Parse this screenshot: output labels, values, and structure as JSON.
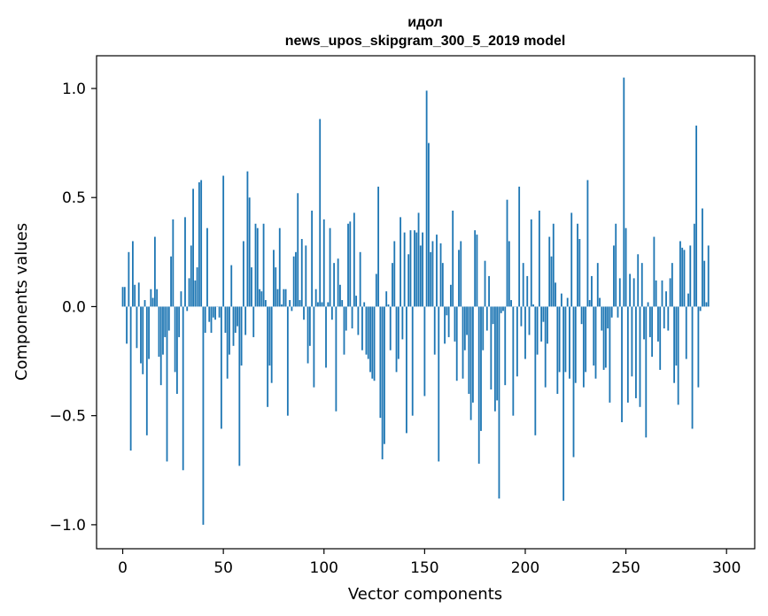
{
  "chart_data": {
    "type": "bar",
    "title": "идол",
    "subtitle": "news_upos_skipgram_300_5_2019 model",
    "xlabel": "Vector components",
    "ylabel": "Components values",
    "xlim": [
      -13,
      314
    ],
    "ylim": [
      -1.11,
      1.15
    ],
    "xticks": [
      0,
      50,
      100,
      150,
      200,
      250,
      300
    ],
    "xtick_labels": [
      "0",
      "50",
      "100",
      "150",
      "200",
      "250",
      "300"
    ],
    "yticks": [
      -1.0,
      -0.5,
      0.0,
      0.5,
      1.0
    ],
    "ytick_labels": [
      "−1.0",
      "−0.5",
      "0.0",
      "0.5",
      "1.0"
    ],
    "grid": false,
    "bar_color": "#1f77b4",
    "series": [
      {
        "values": [
          0.09,
          0.09,
          -0.17,
          0.25,
          -0.66,
          0.3,
          0.1,
          -0.19,
          0.11,
          -0.26,
          -0.31,
          0.03,
          -0.59,
          -0.24,
          0.08,
          0.04,
          0.32,
          0.08,
          -0.23,
          -0.36,
          -0.22,
          -0.14,
          -0.71,
          -0.11,
          0.23,
          0.4,
          -0.3,
          -0.4,
          -0.14,
          0.07,
          -0.75,
          0.41,
          -0.02,
          0.13,
          0.28,
          0.54,
          0.12,
          0.18,
          0.57,
          0.58,
          -1.0,
          -0.12,
          0.36,
          -0.07,
          -0.12,
          -0.05,
          -0.06,
          0.0,
          -0.05,
          -0.56,
          0.6,
          -0.12,
          -0.33,
          -0.22,
          0.19,
          -0.18,
          -0.12,
          -0.09,
          -0.73,
          -0.27,
          0.3,
          -0.13,
          0.62,
          0.5,
          0.18,
          -0.14,
          0.38,
          0.36,
          0.08,
          0.07,
          0.38,
          0.03,
          -0.46,
          -0.27,
          -0.35,
          0.26,
          0.18,
          0.08,
          0.36,
          0.01,
          0.08,
          0.08,
          -0.5,
          0.03,
          -0.02,
          0.23,
          0.25,
          0.52,
          0.03,
          0.31,
          -0.06,
          0.28,
          -0.26,
          -0.18,
          0.44,
          -0.37,
          0.08,
          0.02,
          0.86,
          0.02,
          0.4,
          -0.28,
          0.02,
          0.36,
          -0.06,
          0.2,
          -0.48,
          0.22,
          0.1,
          0.03,
          -0.22,
          -0.11,
          0.38,
          0.39,
          -0.1,
          0.43,
          0.05,
          -0.13,
          0.25,
          -0.2,
          0.02,
          -0.22,
          -0.24,
          -0.3,
          -0.33,
          -0.34,
          0.15,
          0.55,
          -0.51,
          -0.7,
          -0.63,
          0.07,
          0.01,
          -0.2,
          0.2,
          0.3,
          -0.3,
          -0.24,
          0.41,
          -0.15,
          0.34,
          -0.58,
          0.24,
          0.35,
          -0.5,
          0.35,
          0.34,
          0.43,
          0.28,
          0.34,
          -0.41,
          0.99,
          0.75,
          0.25,
          0.3,
          -0.22,
          0.33,
          -0.71,
          0.29,
          0.2,
          -0.17,
          -0.04,
          -0.14,
          0.1,
          0.44,
          -0.16,
          -0.34,
          0.26,
          0.3,
          -0.33,
          -0.2,
          -0.13,
          -0.4,
          -0.52,
          -0.44,
          0.35,
          0.33,
          -0.72,
          -0.57,
          -0.2,
          0.21,
          -0.11,
          0.14,
          -0.38,
          -0.08,
          -0.48,
          -0.43,
          -0.88,
          -0.03,
          -0.02,
          -0.36,
          0.49,
          0.3,
          0.03,
          -0.5,
          0.0,
          -0.32,
          0.55,
          -0.09,
          0.2,
          -0.24,
          0.14,
          -0.13,
          0.4,
          0.01,
          -0.59,
          -0.22,
          0.44,
          -0.16,
          -0.07,
          -0.37,
          -0.17,
          0.32,
          0.23,
          0.38,
          0.11,
          -0.4,
          -0.3,
          0.06,
          -0.89,
          -0.3,
          0.04,
          -0.33,
          0.43,
          -0.69,
          -0.35,
          0.38,
          0.31,
          -0.08,
          -0.37,
          -0.3,
          0.58,
          0.03,
          0.14,
          -0.27,
          -0.33,
          0.2,
          0.04,
          -0.11,
          -0.29,
          -0.28,
          -0.1,
          -0.44,
          -0.05,
          0.28,
          0.38,
          -0.05,
          0.13,
          -0.53,
          1.05,
          0.36,
          -0.44,
          0.15,
          -0.32,
          0.13,
          -0.42,
          0.24,
          -0.46,
          0.2,
          -0.15,
          -0.6,
          0.02,
          -0.14,
          -0.23,
          0.32,
          0.12,
          -0.16,
          -0.29,
          0.12,
          -0.1,
          0.07,
          -0.11,
          0.13,
          0.2,
          -0.35,
          -0.27,
          -0.45,
          0.3,
          0.27,
          0.26,
          -0.24,
          0.06,
          0.28,
          -0.56,
          0.38,
          0.83,
          -0.37,
          -0.02,
          0.45,
          0.21,
          0.02,
          0.28
        ]
      }
    ]
  }
}
